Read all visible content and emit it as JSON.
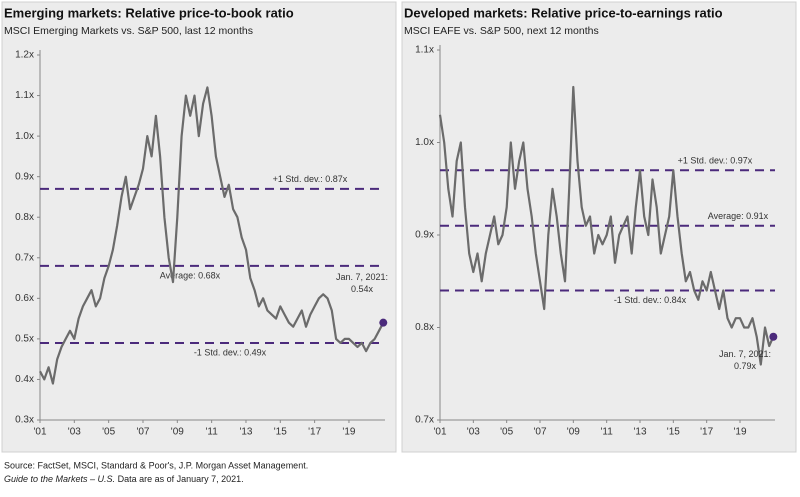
{
  "chart_data": [
    {
      "type": "line",
      "title": "Emerging markets: Relative price-to-book ratio",
      "subtitle": "MSCI Emerging Markets vs. S&P 500, last 12 months",
      "x": [
        2001,
        2001.25,
        2001.5,
        2001.75,
        2002,
        2002.25,
        2002.5,
        2002.75,
        2003,
        2003.25,
        2003.5,
        2003.75,
        2004,
        2004.25,
        2004.5,
        2004.75,
        2005,
        2005.25,
        2005.5,
        2005.75,
        2006,
        2006.25,
        2006.5,
        2006.75,
        2007,
        2007.25,
        2007.5,
        2007.75,
        2008,
        2008.25,
        2008.5,
        2008.75,
        2009,
        2009.25,
        2009.5,
        2009.75,
        2010,
        2010.25,
        2010.5,
        2010.75,
        2011,
        2011.25,
        2011.5,
        2011.75,
        2012,
        2012.25,
        2012.5,
        2012.75,
        2013,
        2013.25,
        2013.5,
        2013.75,
        2014,
        2014.25,
        2014.5,
        2014.75,
        2015,
        2015.25,
        2015.5,
        2015.75,
        2016,
        2016.25,
        2016.5,
        2016.75,
        2017,
        2017.25,
        2017.5,
        2017.75,
        2018,
        2018.25,
        2018.5,
        2018.75,
        2019,
        2019.25,
        2019.5,
        2019.75,
        2020,
        2020.25,
        2020.5,
        2020.75,
        2021
      ],
      "values": [
        0.42,
        0.4,
        0.43,
        0.39,
        0.45,
        0.48,
        0.5,
        0.52,
        0.5,
        0.55,
        0.58,
        0.6,
        0.62,
        0.58,
        0.6,
        0.65,
        0.68,
        0.72,
        0.78,
        0.85,
        0.9,
        0.82,
        0.85,
        0.88,
        0.92,
        1.0,
        0.95,
        1.05,
        0.95,
        0.8,
        0.7,
        0.64,
        0.8,
        1.0,
        1.1,
        1.05,
        1.1,
        1.0,
        1.08,
        1.12,
        1.05,
        0.95,
        0.9,
        0.85,
        0.88,
        0.82,
        0.8,
        0.75,
        0.72,
        0.65,
        0.62,
        0.58,
        0.6,
        0.57,
        0.56,
        0.55,
        0.58,
        0.56,
        0.54,
        0.53,
        0.55,
        0.57,
        0.53,
        0.56,
        0.58,
        0.6,
        0.61,
        0.6,
        0.57,
        0.5,
        0.49,
        0.5,
        0.5,
        0.49,
        0.48,
        0.49,
        0.47,
        0.49,
        0.5,
        0.52,
        0.54
      ],
      "color": "#6b6b6b",
      "xlim": [
        2001,
        2021.1
      ],
      "xticks": [
        {
          "value": 2001,
          "label": "'01"
        },
        {
          "value": 2003,
          "label": "'03"
        },
        {
          "value": 2005,
          "label": "'05"
        },
        {
          "value": 2007,
          "label": "'07"
        },
        {
          "value": 2009,
          "label": "'09"
        },
        {
          "value": 2011,
          "label": "'11"
        },
        {
          "value": 2013,
          "label": "'13"
        },
        {
          "value": 2015,
          "label": "'15"
        },
        {
          "value": 2017,
          "label": "'17"
        },
        {
          "value": 2019,
          "label": "'19"
        }
      ],
      "ylim": [
        0.3,
        1.2
      ],
      "yticks": [
        {
          "value": 0.3,
          "label": "0.3x"
        },
        {
          "value": 0.4,
          "label": "0.4x"
        },
        {
          "value": 0.5,
          "label": "0.5x"
        },
        {
          "value": 0.6,
          "label": "0.6x"
        },
        {
          "value": 0.7,
          "label": "0.7x"
        },
        {
          "value": 0.8,
          "label": "0.8x"
        },
        {
          "value": 0.9,
          "label": "0.9x"
        },
        {
          "value": 1.0,
          "label": "1.0x"
        },
        {
          "value": 1.1,
          "label": "1.1x"
        },
        {
          "value": 1.2,
          "label": "1.2x"
        }
      ],
      "reference_lines": [
        {
          "value": 0.87,
          "label": "+1 Std. dev.: 0.87x"
        },
        {
          "value": 0.68,
          "label": "Average: 0.68x"
        },
        {
          "value": 0.49,
          "label": "-1 Std. dev.: 0.49x"
        }
      ],
      "reference_color": "#4b2a7b",
      "annotation": [
        "Jan. 7, 2021:",
        "0.54x"
      ]
    },
    {
      "type": "line",
      "title": "Developed markets: Relative price-to-earnings ratio",
      "subtitle": "MSCI EAFE vs. S&P 500, next 12 months",
      "x": [
        2001,
        2001.25,
        2001.5,
        2001.75,
        2002,
        2002.25,
        2002.5,
        2002.75,
        2003,
        2003.25,
        2003.5,
        2003.75,
        2004,
        2004.25,
        2004.5,
        2004.75,
        2005,
        2005.25,
        2005.5,
        2005.75,
        2006,
        2006.25,
        2006.5,
        2006.75,
        2007,
        2007.25,
        2007.5,
        2007.75,
        2008,
        2008.25,
        2008.5,
        2008.75,
        2009,
        2009.25,
        2009.5,
        2009.75,
        2010,
        2010.25,
        2010.5,
        2010.75,
        2011,
        2011.25,
        2011.5,
        2011.75,
        2012,
        2012.25,
        2012.5,
        2012.75,
        2013,
        2013.25,
        2013.5,
        2013.75,
        2014,
        2014.25,
        2014.5,
        2014.75,
        2015,
        2015.25,
        2015.5,
        2015.75,
        2016,
        2016.25,
        2016.5,
        2016.75,
        2017,
        2017.25,
        2017.5,
        2017.75,
        2018,
        2018.25,
        2018.5,
        2018.75,
        2019,
        2019.25,
        2019.5,
        2019.75,
        2020,
        2020.25,
        2020.5,
        2020.75,
        2021
      ],
      "values": [
        1.03,
        1.0,
        0.95,
        0.92,
        0.98,
        1.0,
        0.93,
        0.88,
        0.86,
        0.88,
        0.85,
        0.88,
        0.9,
        0.92,
        0.89,
        0.9,
        0.93,
        1.0,
        0.95,
        0.98,
        1.0,
        0.95,
        0.92,
        0.88,
        0.85,
        0.82,
        0.9,
        0.95,
        0.92,
        0.88,
        0.85,
        0.95,
        1.06,
        0.98,
        0.93,
        0.91,
        0.92,
        0.88,
        0.9,
        0.89,
        0.9,
        0.92,
        0.87,
        0.9,
        0.91,
        0.92,
        0.88,
        0.93,
        0.97,
        0.92,
        0.9,
        0.96,
        0.93,
        0.88,
        0.9,
        0.92,
        0.97,
        0.92,
        0.88,
        0.85,
        0.86,
        0.84,
        0.83,
        0.85,
        0.84,
        0.86,
        0.84,
        0.82,
        0.84,
        0.81,
        0.8,
        0.81,
        0.81,
        0.8,
        0.8,
        0.81,
        0.79,
        0.76,
        0.8,
        0.78,
        0.79
      ],
      "color": "#6b6b6b",
      "xlim": [
        2001,
        2021.1
      ],
      "xticks": [
        {
          "value": 2001,
          "label": "'01"
        },
        {
          "value": 2003,
          "label": "'03"
        },
        {
          "value": 2005,
          "label": "'05"
        },
        {
          "value": 2007,
          "label": "'07"
        },
        {
          "value": 2009,
          "label": "'09"
        },
        {
          "value": 2011,
          "label": "'11"
        },
        {
          "value": 2013,
          "label": "'13"
        },
        {
          "value": 2015,
          "label": "'15"
        },
        {
          "value": 2017,
          "label": "'17"
        },
        {
          "value": 2019,
          "label": "'19"
        }
      ],
      "ylim": [
        0.7,
        1.1
      ],
      "yticks": [
        {
          "value": 0.7,
          "label": "0.7x"
        },
        {
          "value": 0.8,
          "label": "0.8x"
        },
        {
          "value": 0.9,
          "label": "0.9x"
        },
        {
          "value": 1.0,
          "label": "1.0x"
        },
        {
          "value": 1.1,
          "label": "1.1x"
        }
      ],
      "reference_lines": [
        {
          "value": 0.97,
          "label": "+1 Std. dev.: 0.97x"
        },
        {
          "value": 0.91,
          "label": "Average: 0.91x"
        },
        {
          "value": 0.84,
          "label": "-1 Std. dev.: 0.84x"
        }
      ],
      "reference_color": "#4b2a7b",
      "annotation": [
        "Jan. 7, 2021:",
        "0.79x"
      ]
    }
  ],
  "footer": {
    "source": "Source: FactSet, MSCI, Standard & Poor's, J.P. Morgan Asset Management.",
    "guide": "Guide to the Markets – U.S.",
    "note": "Data are as of January 7, 2021."
  }
}
